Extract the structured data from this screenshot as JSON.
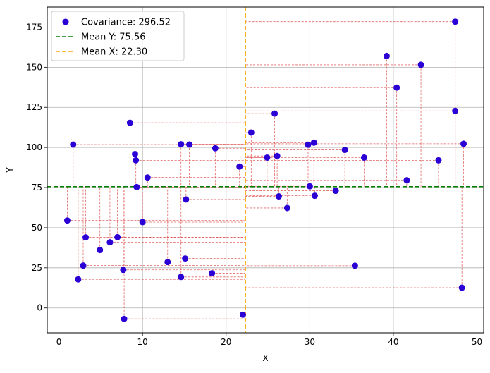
{
  "chart_data": {
    "type": "scatter",
    "xlabel": "X",
    "ylabel": "Y",
    "xlim": [
      -1.4,
      50.8
    ],
    "ylim": [
      -15.5,
      187.5
    ],
    "xticks": [
      0,
      10,
      20,
      30,
      40,
      50
    ],
    "yticks": [
      0,
      25,
      50,
      75,
      100,
      125,
      150,
      175
    ],
    "grid": true,
    "legend_position": "top-left",
    "colors": {
      "points": "#2a00d5",
      "mean_y": "#008000",
      "mean_x": "#ffa500",
      "deviation_lines": "#e05555",
      "grid": "#b0b0b0"
    },
    "mean_x": 22.3,
    "mean_y": 75.56,
    "legend": [
      {
        "label": "Covariance: 296.52",
        "kind": "marker",
        "color": "#2a00d5"
      },
      {
        "label": "Mean Y: 75.56",
        "kind": "line",
        "color": "#008000"
      },
      {
        "label": "Mean X: 22.30",
        "kind": "line",
        "color": "#ffa500"
      }
    ],
    "points": [
      {
        "x": 1.0,
        "y": 54.5
      },
      {
        "x": 1.7,
        "y": 101.8
      },
      {
        "x": 2.3,
        "y": 17.8
      },
      {
        "x": 2.9,
        "y": 26.4
      },
      {
        "x": 3.2,
        "y": 44.0
      },
      {
        "x": 4.9,
        "y": 36.1
      },
      {
        "x": 6.1,
        "y": 40.9
      },
      {
        "x": 7.0,
        "y": 44.1
      },
      {
        "x": 7.7,
        "y": 23.7
      },
      {
        "x": 7.8,
        "y": -6.8
      },
      {
        "x": 8.5,
        "y": 115.4
      },
      {
        "x": 9.1,
        "y": 95.9
      },
      {
        "x": 9.2,
        "y": 92.0
      },
      {
        "x": 9.3,
        "y": 75.3
      },
      {
        "x": 10.0,
        "y": 53.5
      },
      {
        "x": 10.6,
        "y": 81.3
      },
      {
        "x": 13.0,
        "y": 28.6
      },
      {
        "x": 14.6,
        "y": 102.0
      },
      {
        "x": 14.6,
        "y": 19.3
      },
      {
        "x": 15.1,
        "y": 30.8
      },
      {
        "x": 15.2,
        "y": 67.6
      },
      {
        "x": 15.6,
        "y": 101.8
      },
      {
        "x": 18.3,
        "y": 21.6
      },
      {
        "x": 18.7,
        "y": 99.5
      },
      {
        "x": 21.6,
        "y": 88.1
      },
      {
        "x": 22.0,
        "y": -4.2
      },
      {
        "x": 23.0,
        "y": 109.3
      },
      {
        "x": 24.9,
        "y": 93.7
      },
      {
        "x": 25.8,
        "y": 121.1
      },
      {
        "x": 26.1,
        "y": 94.7
      },
      {
        "x": 26.3,
        "y": 69.5
      },
      {
        "x": 27.3,
        "y": 62.3
      },
      {
        "x": 29.8,
        "y": 101.7
      },
      {
        "x": 30.0,
        "y": 75.8
      },
      {
        "x": 30.5,
        "y": 103.0
      },
      {
        "x": 30.6,
        "y": 69.9
      },
      {
        "x": 33.1,
        "y": 73.0
      },
      {
        "x": 34.2,
        "y": 98.5
      },
      {
        "x": 35.4,
        "y": 26.3
      },
      {
        "x": 36.5,
        "y": 93.7
      },
      {
        "x": 39.2,
        "y": 157.0
      },
      {
        "x": 40.4,
        "y": 137.3
      },
      {
        "x": 41.6,
        "y": 79.5
      },
      {
        "x": 43.3,
        "y": 151.5
      },
      {
        "x": 45.4,
        "y": 92.0
      },
      {
        "x": 47.4,
        "y": 178.4
      },
      {
        "x": 47.4,
        "y": 122.8
      },
      {
        "x": 48.2,
        "y": 12.6
      },
      {
        "x": 48.4,
        "y": 102.3
      }
    ]
  }
}
